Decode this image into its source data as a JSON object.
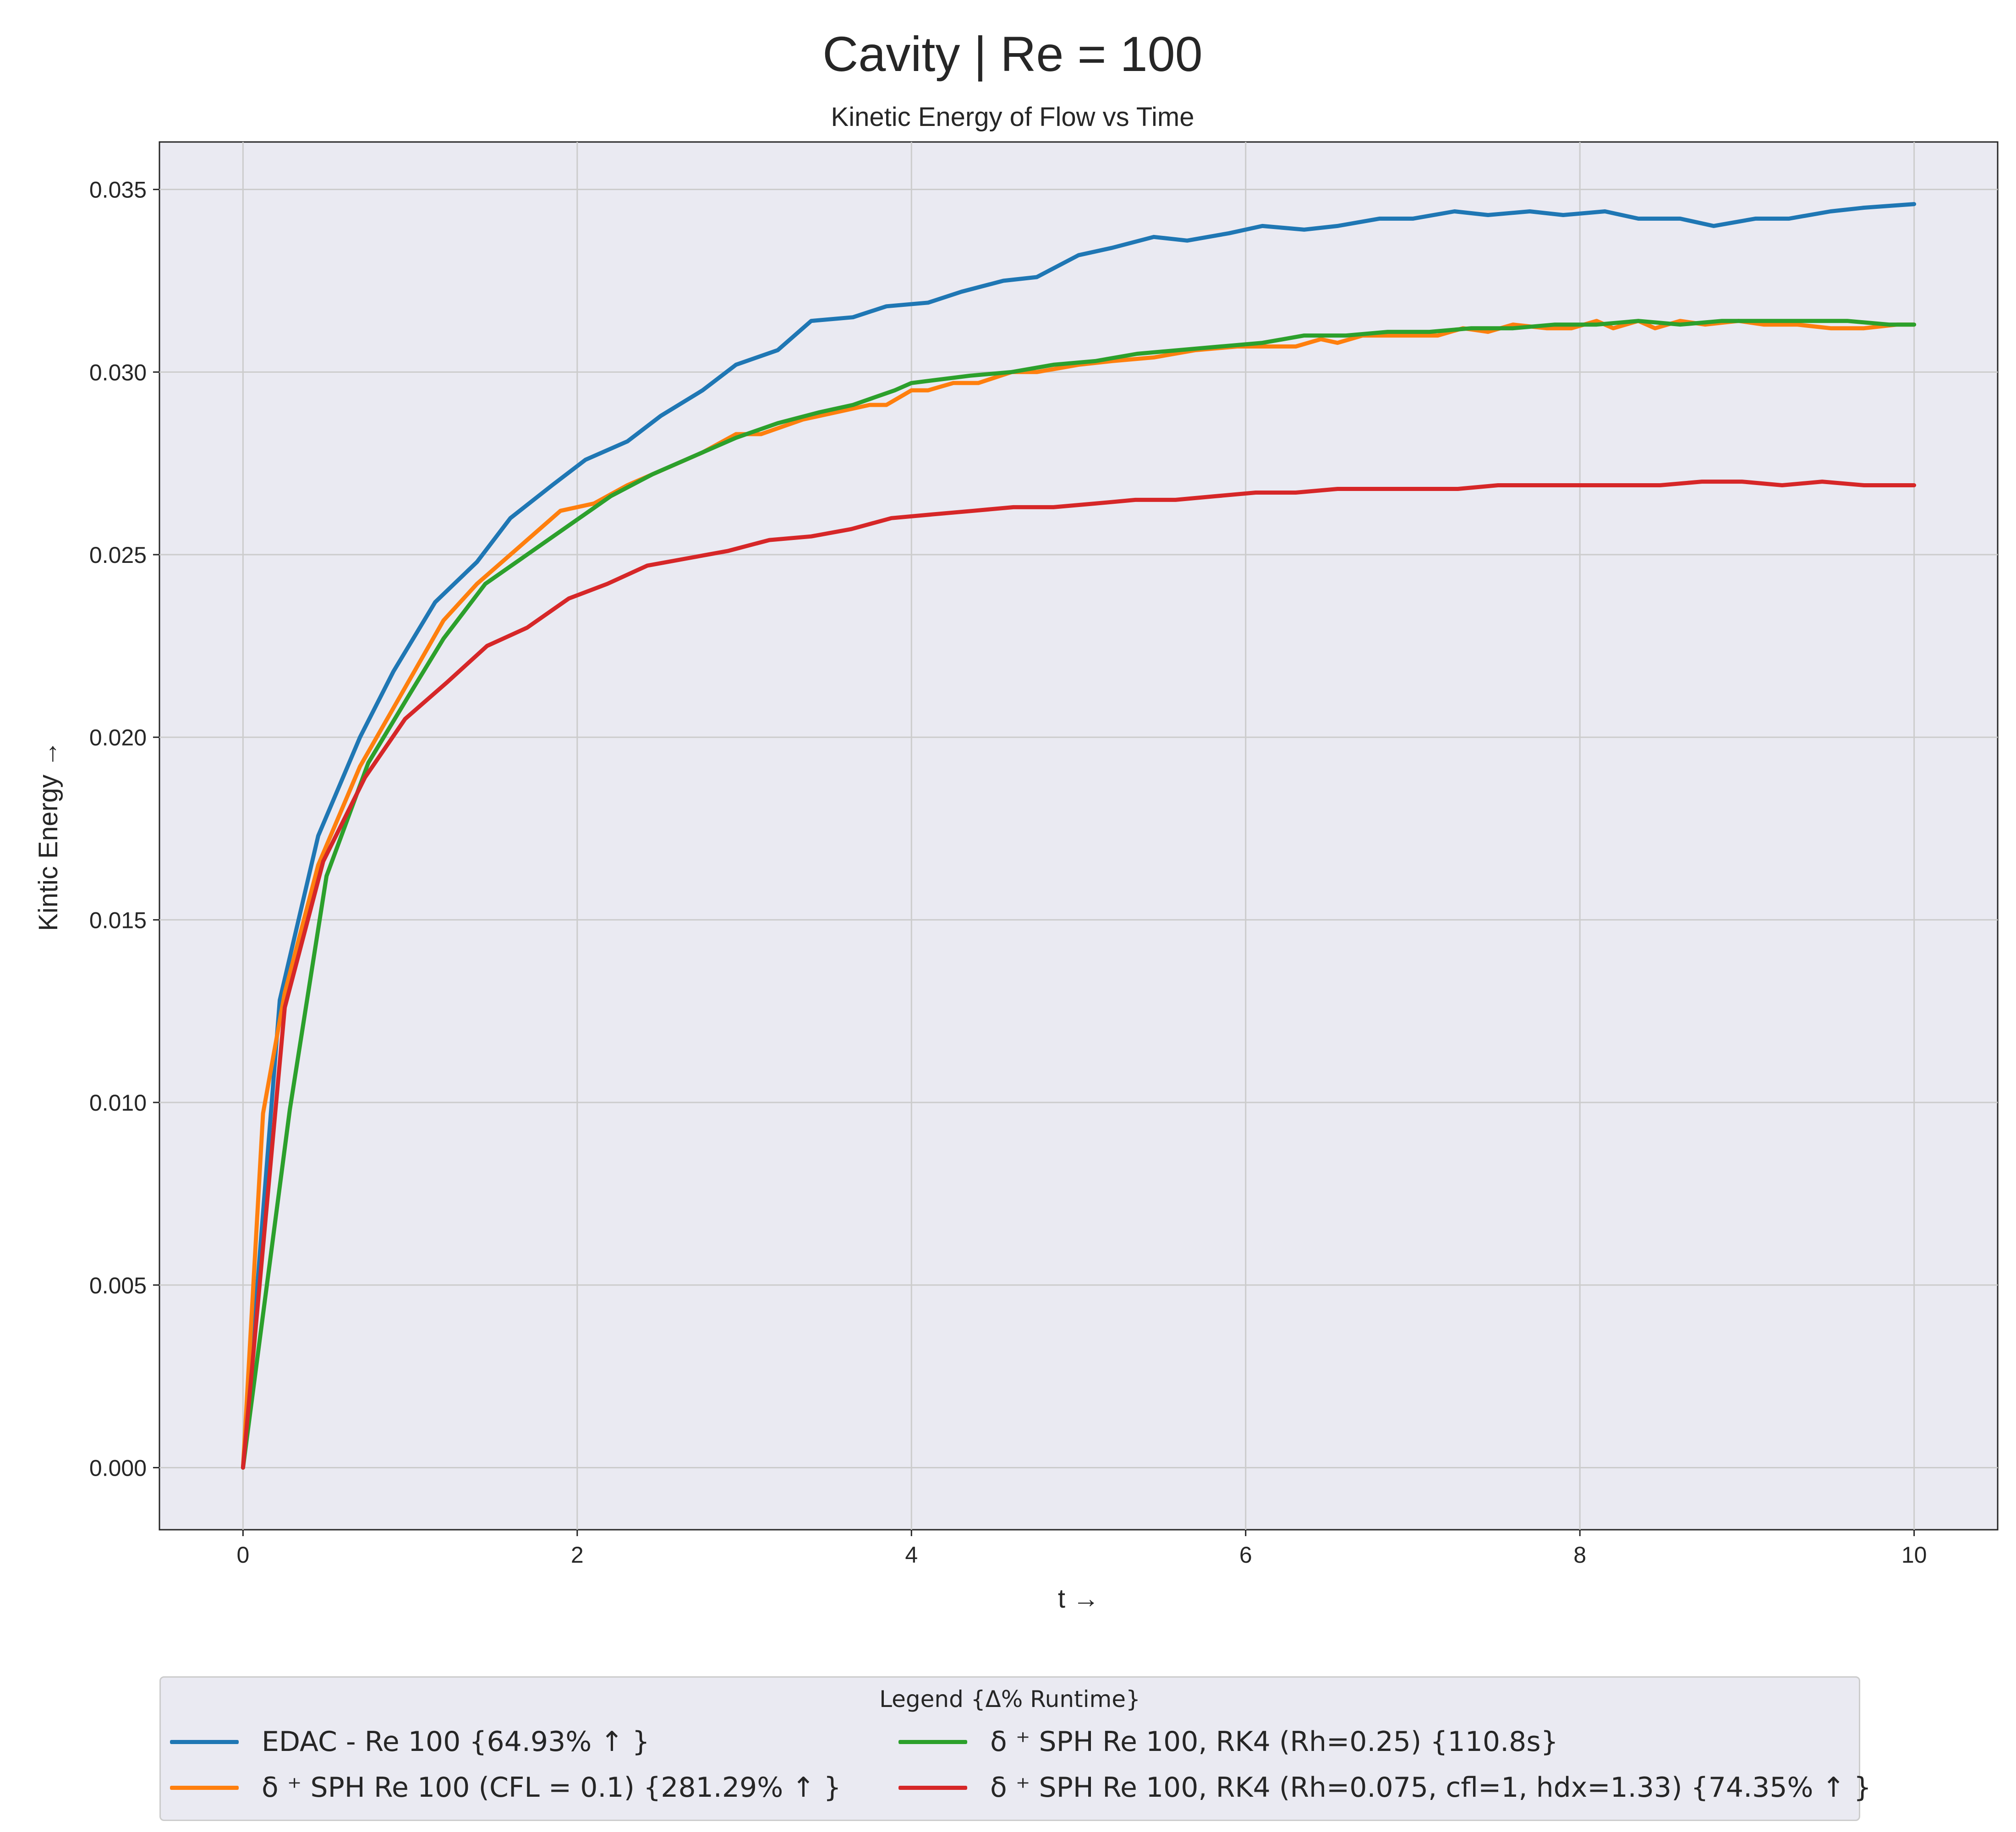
{
  "suptitle": "Cavity | Re = 100",
  "chart_data": {
    "type": "line",
    "title": "Kinetic Energy of Flow vs Time",
    "xlabel": "t →",
    "ylabel": "Kintic Energy →",
    "xlim": [
      -0.5,
      10.5
    ],
    "ylim": [
      -0.0017,
      0.0363
    ],
    "xticks": [
      0,
      2,
      4,
      6,
      8,
      10
    ],
    "xtick_labels": [
      "0",
      "2",
      "4",
      "6",
      "8",
      "10"
    ],
    "yticks": [
      0.0,
      0.005,
      0.01,
      0.015,
      0.02,
      0.025,
      0.03,
      0.035
    ],
    "ytick_labels": [
      "0.000",
      "0.005",
      "0.010",
      "0.015",
      "0.020",
      "0.025",
      "0.030",
      "0.035"
    ],
    "grid": true,
    "legend_placement": "below",
    "legend_title": "Legend {Δ% Runtime}",
    "series": [
      {
        "name": "EDAC - Re 100 {64.93% ↑ }",
        "color": "#1f77b4",
        "x": [
          0,
          0.22,
          0.45,
          0.7,
          0.9,
          1.15,
          1.4,
          1.6,
          1.85,
          2.05,
          2.3,
          2.5,
          2.75,
          2.95,
          3.2,
          3.4,
          3.65,
          3.85,
          4.1,
          4.3,
          4.55,
          4.75,
          5.0,
          5.2,
          5.45,
          5.65,
          5.9,
          6.1,
          6.35,
          6.55,
          6.8,
          7.0,
          7.25,
          7.45,
          7.7,
          7.9,
          8.15,
          8.35,
          8.6,
          8.8,
          9.05,
          9.25,
          9.5,
          9.7,
          10.0
        ],
        "y": [
          0.0,
          0.0128,
          0.0173,
          0.02,
          0.0218,
          0.0237,
          0.0248,
          0.026,
          0.0269,
          0.0276,
          0.0281,
          0.0288,
          0.0295,
          0.0302,
          0.0306,
          0.0314,
          0.0315,
          0.0318,
          0.0319,
          0.0322,
          0.0325,
          0.0326,
          0.0332,
          0.0334,
          0.0337,
          0.0336,
          0.0338,
          0.034,
          0.0339,
          0.034,
          0.0342,
          0.0342,
          0.0344,
          0.0343,
          0.0344,
          0.0343,
          0.0344,
          0.0342,
          0.0342,
          0.034,
          0.0342,
          0.0342,
          0.0344,
          0.0345,
          0.0346
        ]
      },
      {
        "name": "δ ⁺ SPH Re 100 (CFL = 0.1) {281.29% ↑ }",
        "color": "#ff7f0e",
        "x": [
          0,
          0.12,
          0.25,
          0.45,
          0.7,
          0.95,
          1.2,
          1.4,
          1.65,
          1.9,
          2.1,
          2.3,
          2.55,
          2.75,
          2.95,
          3.1,
          3.35,
          3.55,
          3.75,
          3.85,
          4.0,
          4.1,
          4.25,
          4.4,
          4.6,
          4.75,
          5.0,
          5.2,
          5.45,
          5.7,
          5.95,
          6.15,
          6.3,
          6.45,
          6.55,
          6.7,
          6.85,
          7.0,
          7.15,
          7.3,
          7.45,
          7.6,
          7.8,
          7.95,
          8.1,
          8.2,
          8.35,
          8.45,
          8.6,
          8.75,
          8.95,
          9.1,
          9.3,
          9.5,
          9.7,
          9.9,
          10.0
        ],
        "y": [
          0.0,
          0.0097,
          0.013,
          0.0165,
          0.0192,
          0.0212,
          0.0232,
          0.0242,
          0.0252,
          0.0262,
          0.0264,
          0.0269,
          0.0274,
          0.0278,
          0.0283,
          0.0283,
          0.0287,
          0.0289,
          0.0291,
          0.0291,
          0.0295,
          0.0295,
          0.0297,
          0.0297,
          0.03,
          0.03,
          0.0302,
          0.0303,
          0.0304,
          0.0306,
          0.0307,
          0.0307,
          0.0307,
          0.0309,
          0.0308,
          0.031,
          0.031,
          0.031,
          0.031,
          0.0312,
          0.0311,
          0.0313,
          0.0312,
          0.0312,
          0.0314,
          0.0312,
          0.0314,
          0.0312,
          0.0314,
          0.0313,
          0.0314,
          0.0313,
          0.0313,
          0.0312,
          0.0312,
          0.0313,
          0.0313
        ]
      },
      {
        "name": "δ ⁺ SPH Re 100, RK4 (Rh=0.25) {110.8s}",
        "color": "#2ca02c",
        "x": [
          0,
          0.28,
          0.5,
          0.75,
          1.0,
          1.2,
          1.45,
          1.7,
          1.95,
          2.2,
          2.45,
          2.7,
          2.95,
          3.2,
          3.45,
          3.65,
          3.9,
          4.0,
          4.35,
          4.6,
          4.85,
          5.1,
          5.35,
          5.6,
          5.85,
          6.1,
          6.35,
          6.6,
          6.85,
          7.1,
          7.35,
          7.6,
          7.85,
          8.1,
          8.35,
          8.6,
          8.85,
          9.1,
          9.35,
          9.6,
          9.85,
          10.0
        ],
        "y": [
          0.0,
          0.0098,
          0.0162,
          0.0193,
          0.0212,
          0.0227,
          0.0242,
          0.025,
          0.0258,
          0.0266,
          0.0272,
          0.0277,
          0.0282,
          0.0286,
          0.0289,
          0.0291,
          0.0295,
          0.0297,
          0.0299,
          0.03,
          0.0302,
          0.0303,
          0.0305,
          0.0306,
          0.0307,
          0.0308,
          0.031,
          0.031,
          0.0311,
          0.0311,
          0.0312,
          0.0312,
          0.0313,
          0.0313,
          0.0314,
          0.0313,
          0.0314,
          0.0314,
          0.0314,
          0.0314,
          0.0313,
          0.0313
        ]
      },
      {
        "name": "δ ⁺ SPH Re 100, RK4 (Rh=0.075, cfl=1, hdx=1.33) {74.35% ↑ }",
        "color": "#d62728",
        "x": [
          0,
          0.25,
          0.48,
          0.73,
          0.97,
          1.22,
          1.46,
          1.7,
          1.95,
          2.18,
          2.42,
          2.66,
          2.9,
          3.15,
          3.4,
          3.64,
          3.88,
          4.12,
          4.37,
          4.61,
          4.85,
          5.1,
          5.34,
          5.58,
          5.82,
          6.06,
          6.3,
          6.55,
          6.79,
          7.03,
          7.27,
          7.51,
          7.76,
          8.0,
          8.24,
          8.48,
          8.73,
          8.97,
          9.21,
          9.45,
          9.7,
          9.94,
          10.0
        ],
        "y": [
          0.0,
          0.0126,
          0.0166,
          0.0189,
          0.0205,
          0.0215,
          0.0225,
          0.023,
          0.0238,
          0.0242,
          0.0247,
          0.0249,
          0.0251,
          0.0254,
          0.0255,
          0.0257,
          0.026,
          0.0261,
          0.0262,
          0.0263,
          0.0263,
          0.0264,
          0.0265,
          0.0265,
          0.0266,
          0.0267,
          0.0267,
          0.0268,
          0.0268,
          0.0268,
          0.0268,
          0.0269,
          0.0269,
          0.0269,
          0.0269,
          0.0269,
          0.027,
          0.027,
          0.0269,
          0.027,
          0.0269,
          0.0269,
          0.0269
        ]
      }
    ]
  }
}
